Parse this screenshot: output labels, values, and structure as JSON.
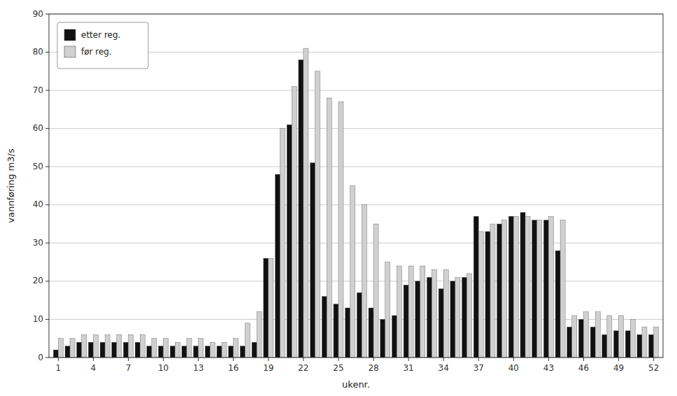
{
  "chart_data": {
    "type": "bar",
    "x": [
      1,
      2,
      3,
      4,
      5,
      6,
      7,
      8,
      9,
      10,
      11,
      12,
      13,
      14,
      15,
      16,
      17,
      18,
      19,
      20,
      21,
      22,
      23,
      24,
      25,
      26,
      27,
      28,
      29,
      30,
      31,
      32,
      33,
      34,
      35,
      36,
      37,
      38,
      39,
      40,
      41,
      42,
      43,
      44,
      45,
      46,
      47,
      48,
      49,
      50,
      51,
      52
    ],
    "series": [
      {
        "name": "etter reg.",
        "color": "#111111",
        "values": [
          2,
          3,
          4,
          4,
          4,
          4,
          4,
          4,
          3,
          3,
          3,
          3,
          3,
          3,
          3,
          3,
          3,
          4,
          26,
          48,
          61,
          78,
          51,
          16,
          14,
          13,
          17,
          13,
          10,
          11,
          19,
          20,
          21,
          18,
          20,
          21,
          37,
          33,
          35,
          37,
          38,
          36,
          36,
          28,
          8,
          10,
          8,
          6,
          7,
          7,
          6,
          6
        ]
      },
      {
        "name": "før reg.",
        "color": "#d0d0d0",
        "values": [
          5,
          5,
          6,
          6,
          6,
          6,
          6,
          6,
          5,
          5,
          4,
          5,
          5,
          4,
          4,
          5,
          9,
          12,
          26,
          60,
          71,
          81,
          75,
          68,
          67,
          45,
          40,
          35,
          25,
          24,
          24,
          24,
          23,
          23,
          21,
          22,
          33,
          35,
          36,
          37,
          37,
          36,
          37,
          36,
          11,
          12,
          12,
          11,
          11,
          10,
          8,
          8
        ]
      }
    ],
    "x_label": "ukenr.",
    "y_label": "vannføring  m3/s",
    "xlim": [
      0.2,
      52.8
    ],
    "xticks": [
      1,
      4,
      7,
      10,
      13,
      16,
      19,
      22,
      25,
      28,
      31,
      34,
      37,
      40,
      43,
      46,
      49,
      52
    ],
    "ylim": [
      0,
      90
    ],
    "yticks": [
      0,
      10,
      20,
      30,
      40,
      50,
      60,
      70,
      80,
      90
    ],
    "grid": true,
    "legend": "upper left"
  }
}
